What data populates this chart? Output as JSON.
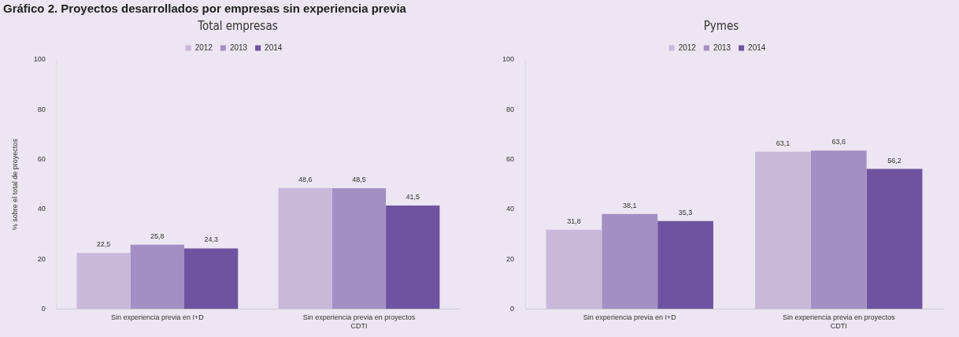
{
  "chart_data": [
    {
      "type": "bar",
      "title": "Gráfico 2. Proyectos desarrollados por empresas sin experiencia previa",
      "subtitle": "Total empresas",
      "ylabel": "% sobre el total de proyectos",
      "categories": [
        "Sin experiencia previa en I+D",
        "Sin experiencia previa en proyectos CDTI"
      ],
      "series": [
        {
          "name": "2012",
          "color": "#c9b8da",
          "values": [
            22.5,
            48.6
          ],
          "value_labels": [
            "22,5",
            "48,6"
          ]
        },
        {
          "name": "2013",
          "color": "#a48fc4",
          "values": [
            25.8,
            48.5
          ],
          "value_labels": [
            "25,8",
            "48,5"
          ]
        },
        {
          "name": "2014",
          "color": "#6e54a0",
          "values": [
            24.3,
            41.5
          ],
          "value_labels": [
            "24,3",
            "41,5"
          ]
        }
      ],
      "ylim": [
        0,
        100
      ],
      "yticks": [
        0,
        20,
        40,
        60,
        80,
        100
      ],
      "grid": false,
      "legend": "top"
    },
    {
      "type": "bar",
      "subtitle": "Pymes",
      "categories": [
        "Sin experiencia previa en I+D",
        "Sin experiencia previa en proyectos CDTI"
      ],
      "series": [
        {
          "name": "2012",
          "color": "#c9b8da",
          "values": [
            31.8,
            63.1
          ],
          "value_labels": [
            "31,8",
            "63,1"
          ]
        },
        {
          "name": "2013",
          "color": "#a48fc4",
          "values": [
            38.1,
            63.6
          ],
          "value_labels": [
            "38,1",
            "63,6"
          ]
        },
        {
          "name": "2014",
          "color": "#6e54a0",
          "values": [
            35.3,
            56.2
          ],
          "value_labels": [
            "35,3",
            "56,2"
          ]
        }
      ],
      "ylim": [
        0,
        100
      ],
      "yticks": [
        0,
        20,
        40,
        60,
        80,
        100
      ],
      "grid": false,
      "legend": "top"
    }
  ]
}
